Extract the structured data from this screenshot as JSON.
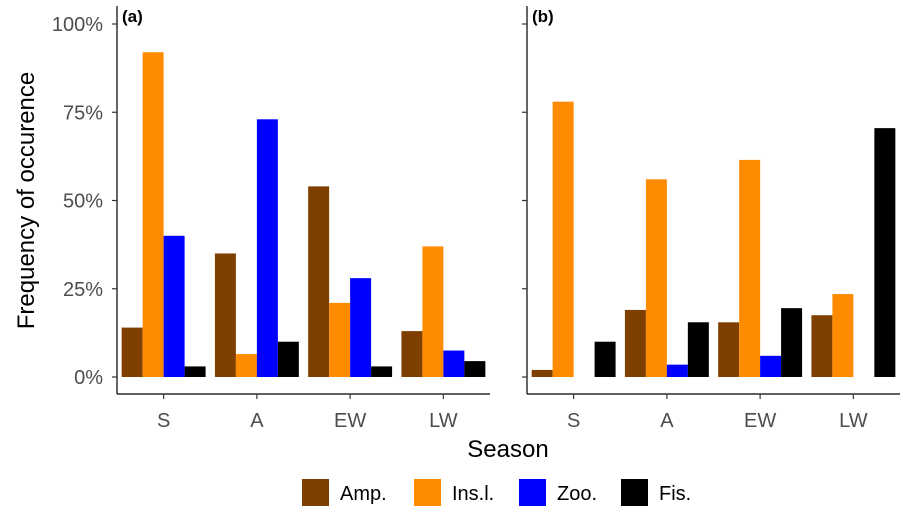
{
  "chart_data": {
    "type": "bar",
    "ylabel": "Frequency of occurence",
    "xlabel": "Season",
    "ylim": [
      0,
      1
    ],
    "yticks": [
      "0%",
      "25%",
      "50%",
      "75%",
      "100%"
    ],
    "categories": [
      "S",
      "A",
      "EW",
      "LW"
    ],
    "legend_position": "bottom",
    "legend": [
      {
        "name": "Amp.",
        "color": "#7f3f00"
      },
      {
        "name": "Ins.l.",
        "color": "#ff8c00"
      },
      {
        "name": "Zoo.",
        "color": "#0000ff"
      },
      {
        "name": "Fis.",
        "color": "#000000"
      }
    ],
    "panels": [
      {
        "tag": "(a)",
        "series": [
          {
            "name": "Amp.",
            "values": [
              0.14,
              0.35,
              0.54,
              0.13
            ]
          },
          {
            "name": "Ins.l.",
            "values": [
              0.92,
              0.065,
              0.21,
              0.37
            ]
          },
          {
            "name": "Zoo.",
            "values": [
              0.4,
              0.73,
              0.28,
              0.075
            ]
          },
          {
            "name": "Fis.",
            "values": [
              0.03,
              0.1,
              0.03,
              0.045
            ]
          }
        ]
      },
      {
        "tag": "(b)",
        "series": [
          {
            "name": "Amp.",
            "values": [
              0.02,
              0.19,
              0.155,
              0.175
            ]
          },
          {
            "name": "Ins.l.",
            "values": [
              0.78,
              0.56,
              0.615,
              0.235
            ]
          },
          {
            "name": "Zoo.",
            "values": [
              0.0,
              0.035,
              0.06,
              0.0
            ]
          },
          {
            "name": "Fis.",
            "values": [
              0.1,
              0.155,
              0.195,
              0.705
            ]
          }
        ]
      }
    ]
  }
}
